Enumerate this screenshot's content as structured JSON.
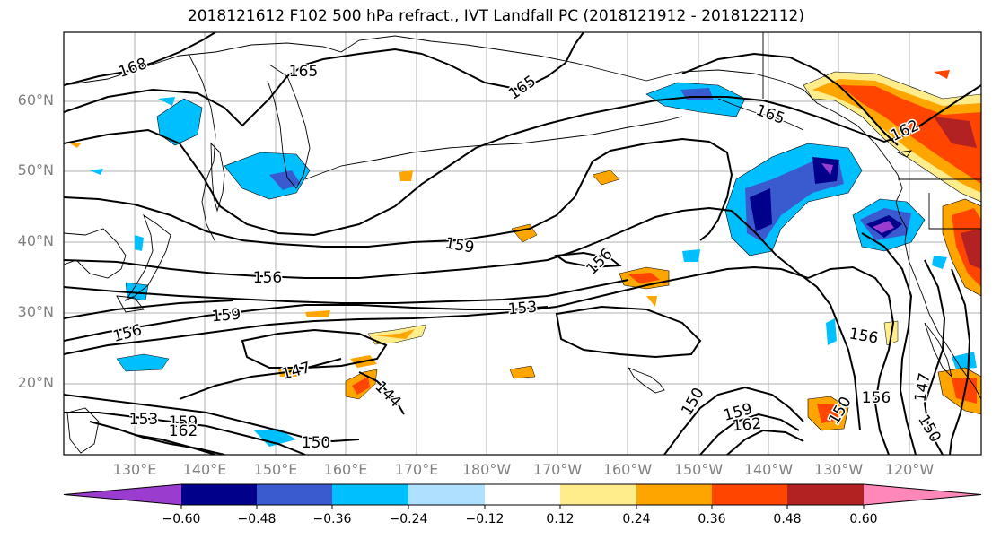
{
  "title": "2018121612 F102 500 hPa refract., IVT Landfall PC (2018121912 - 2018122112)",
  "map": {
    "lat_labels": [
      "60°N",
      "50°N",
      "40°N",
      "30°N",
      "20°N"
    ],
    "lon_labels": [
      "130°E",
      "140°E",
      "150°E",
      "160°E",
      "170°E",
      "180°W",
      "170°W",
      "160°W",
      "150°W",
      "140°W",
      "130°W",
      "120°W"
    ],
    "contour_labels": [
      {
        "text": "168"
      },
      {
        "text": "165"
      },
      {
        "text": "165"
      },
      {
        "text": "165"
      },
      {
        "text": "162"
      },
      {
        "text": "159"
      },
      {
        "text": "156"
      },
      {
        "text": "156"
      },
      {
        "text": "159"
      },
      {
        "text": "156"
      },
      {
        "text": "153"
      },
      {
        "text": "147"
      },
      {
        "text": "144"
      },
      {
        "text": "150"
      },
      {
        "text": "159"
      },
      {
        "text": "162"
      },
      {
        "text": "150"
      },
      {
        "text": "156"
      },
      {
        "text": "150"
      },
      {
        "text": "147"
      },
      {
        "text": "150"
      },
      {
        "text": "153"
      },
      {
        "text": "159"
      },
      {
        "text": "162"
      },
      {
        "text": "156"
      }
    ]
  },
  "colorbar": {
    "colors": [
      "#9a3dcf",
      "#00008b",
      "#3a5bd0",
      "#00bfff",
      "#b0e0ff",
      "#ffffff",
      "#ffec8b",
      "#ffa500",
      "#ff4500",
      "#b22222",
      "#ff88b8"
    ],
    "ticks": [
      "−0.60",
      "−0.48",
      "−0.36",
      "−0.24",
      "−0.12",
      "0.12",
      "0.24",
      "0.36",
      "0.48",
      "0.60"
    ]
  }
}
